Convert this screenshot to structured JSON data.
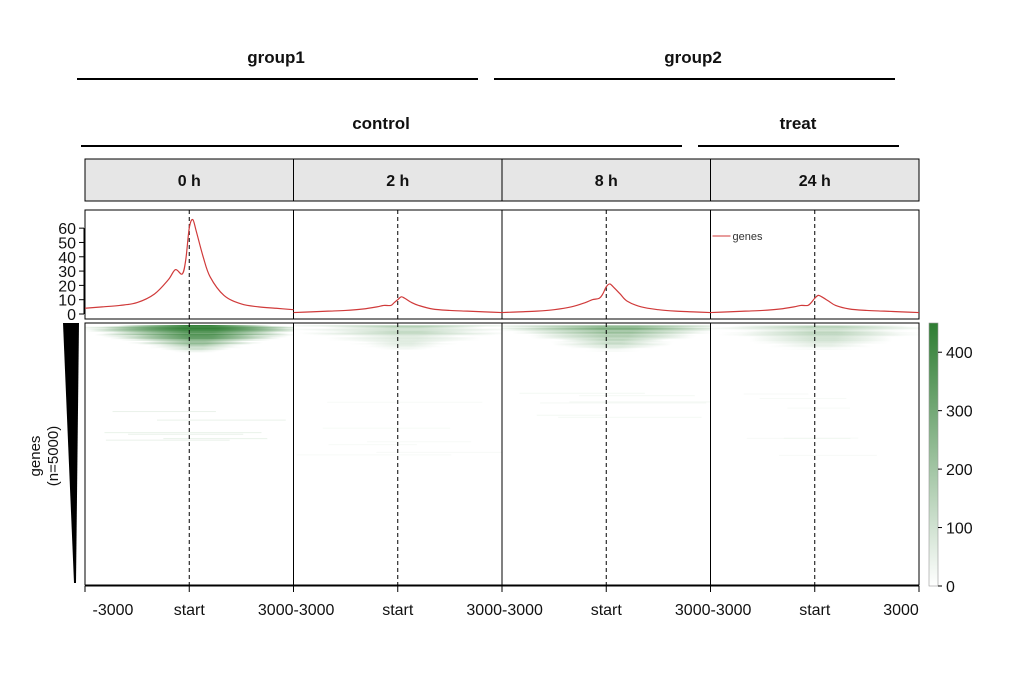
{
  "groups": [
    {
      "label": "group1"
    },
    {
      "label": "group2"
    }
  ],
  "conditions": [
    {
      "label": "control"
    },
    {
      "label": "treat"
    }
  ],
  "colors": {
    "profile": "#d03a3a",
    "heat_high": "#2e7d32",
    "heat_low": "#ffffff",
    "facet_bg": "#e6e6e6"
  },
  "chart_data": {
    "type": "heatmap",
    "facets": [
      "0 h",
      "2 h",
      "8 h",
      "24 h"
    ],
    "x_ticks": [
      "-3000",
      "start",
      "3000"
    ],
    "x_range": [
      -3000,
      3000
    ],
    "profile": {
      "legend": "genes",
      "ylim": [
        0,
        65
      ],
      "yticks": [
        "0",
        "10",
        "20",
        "30",
        "40",
        "50",
        "60"
      ],
      "x": [
        -3000,
        -2500,
        -2000,
        -1500,
        -1000,
        -600,
        -400,
        -200,
        -100,
        0,
        100,
        200,
        400,
        600,
        1000,
        1500,
        2000,
        2500,
        3000
      ],
      "series": [
        {
          "facet": "0 h",
          "values": [
            4,
            5,
            6,
            8,
            14,
            24,
            31,
            28,
            38,
            60,
            66,
            58,
            40,
            26,
            13,
            7,
            5,
            4,
            3
          ]
        },
        {
          "facet": "2 h",
          "values": [
            1,
            1.5,
            2,
            2.5,
            3.5,
            5,
            6,
            6,
            8,
            10,
            12,
            11,
            8,
            6,
            3.5,
            2.5,
            2,
            1.5,
            1
          ]
        },
        {
          "facet": "8 h",
          "values": [
            1,
            1.5,
            2,
            3,
            5,
            8,
            10,
            11,
            14,
            19,
            21,
            19,
            14,
            9,
            5,
            3,
            2,
            1.5,
            1
          ]
        },
        {
          "facet": "24 h",
          "values": [
            1,
            1.5,
            2,
            2.5,
            3.5,
            5,
            6,
            6,
            8,
            11,
            13,
            12,
            9,
            6,
            3.5,
            2.5,
            2,
            1.5,
            1
          ]
        }
      ]
    },
    "heatmap": {
      "row_label": "genes",
      "row_count_label": "(n=5000)",
      "colorbar": {
        "min": 0,
        "max": 450,
        "ticks": [
          "0",
          "100",
          "200",
          "300",
          "400"
        ]
      },
      "facet_intensity": [
        1.0,
        0.22,
        0.45,
        0.25
      ]
    }
  }
}
